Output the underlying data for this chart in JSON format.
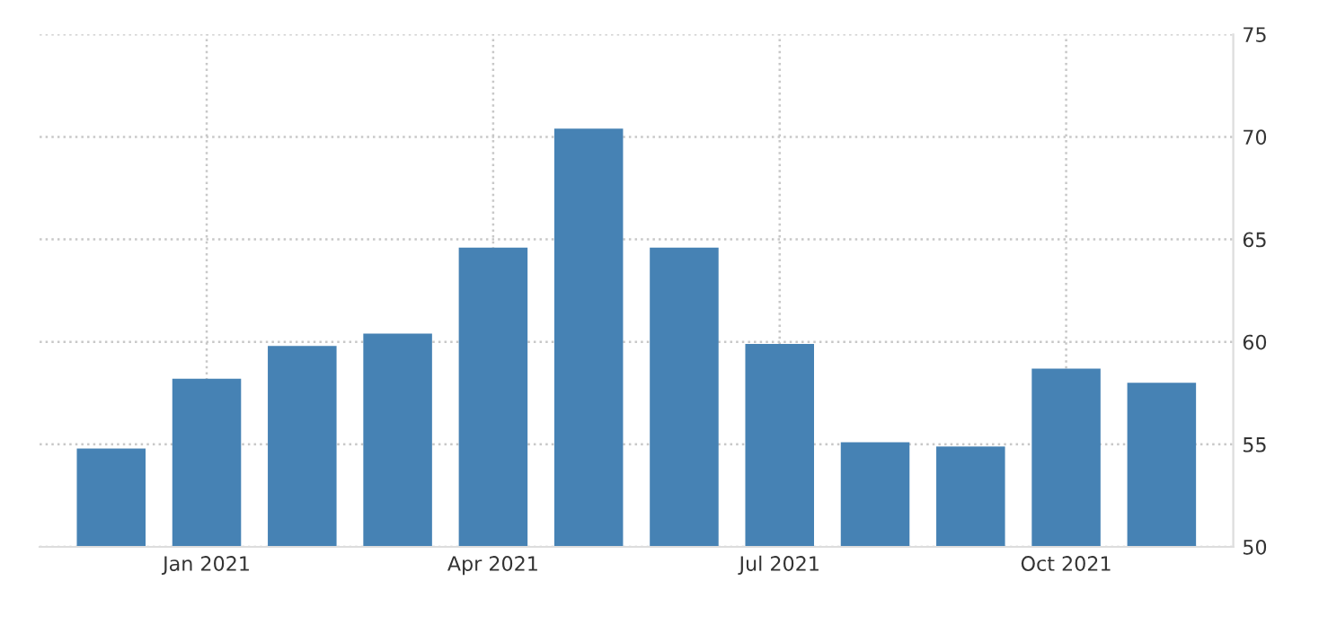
{
  "chart_data": {
    "type": "bar",
    "categories": [
      null,
      "Jan 2021",
      null,
      null,
      "Apr 2021",
      null,
      null,
      "Jul 2021",
      null,
      null,
      "Oct 2021",
      null
    ],
    "values": [
      54.8,
      58.2,
      59.8,
      60.4,
      64.6,
      70.4,
      64.6,
      59.9,
      55.1,
      54.9,
      58.7,
      58.0
    ],
    "color": "#4682b4",
    "ylim": [
      50,
      75
    ],
    "yticks": [
      50,
      55,
      60,
      65,
      70,
      75
    ],
    "grid": true
  }
}
